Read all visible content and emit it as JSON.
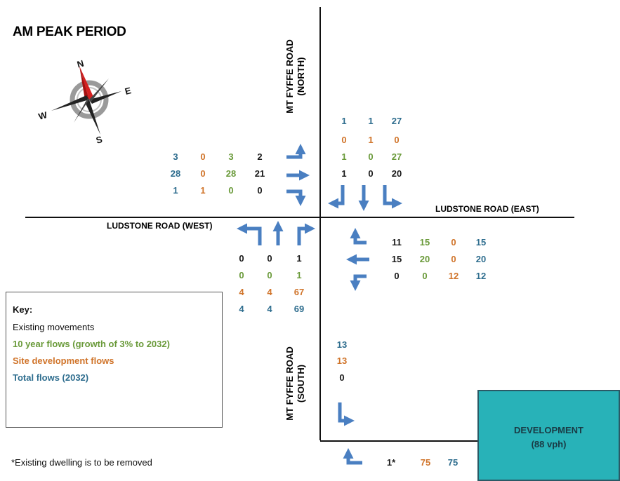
{
  "title": "AM PEAK PERIOD",
  "compass": {
    "n": "N",
    "e": "E",
    "s": "S",
    "w": "W"
  },
  "roads": {
    "north": {
      "line1": "MT FYFFE ROAD",
      "line2": "(NORTH)"
    },
    "south": {
      "line1": "MT FYFFE ROAD",
      "line2": "(SOUTH)"
    },
    "east": "LUDSTONE ROAD (EAST)",
    "west": "LUDSTONE ROAD (WEST)"
  },
  "west_approach": {
    "rows": [
      [
        "3",
        "0",
        "3",
        "2"
      ],
      [
        "28",
        "0",
        "28",
        "21"
      ],
      [
        "1",
        "1",
        "0",
        "0"
      ]
    ]
  },
  "north_approach": {
    "rows": [
      [
        "1",
        "1",
        "27"
      ],
      [
        "0",
        "1",
        "0"
      ],
      [
        "1",
        "0",
        "27"
      ],
      [
        "1",
        "0",
        "20"
      ]
    ]
  },
  "south_approach": {
    "rows": [
      [
        "0",
        "0",
        "1"
      ],
      [
        "0",
        "0",
        "1"
      ],
      [
        "4",
        "4",
        "67"
      ],
      [
        "4",
        "4",
        "69"
      ]
    ]
  },
  "east_approach": {
    "rows": [
      [
        "11",
        "15",
        "0",
        "15"
      ],
      [
        "15",
        "20",
        "0",
        "20"
      ],
      [
        "0",
        "0",
        "12",
        "12"
      ]
    ]
  },
  "south_leg": {
    "values": [
      "13",
      "13",
      "0"
    ]
  },
  "bottom_row": {
    "existing": "1*",
    "site": "75",
    "total": "75"
  },
  "key": {
    "heading": "Key:",
    "existing": "Existing movements",
    "growth": "10 year flows (growth of 3% to 2032)",
    "site": "Site development flows",
    "total": "Total flows (2032)"
  },
  "footnote": "*Existing dwelling is to be removed",
  "development": {
    "line1": "DEVELOPMENT",
    "line2": "(88 vph)"
  },
  "colors": {
    "existing": "#1a1a1a",
    "growth": "#6a9a3a",
    "site": "#d0742a",
    "total": "#2e6d8e",
    "arrow": "#4a7fc1",
    "development": "#28b2b8"
  }
}
